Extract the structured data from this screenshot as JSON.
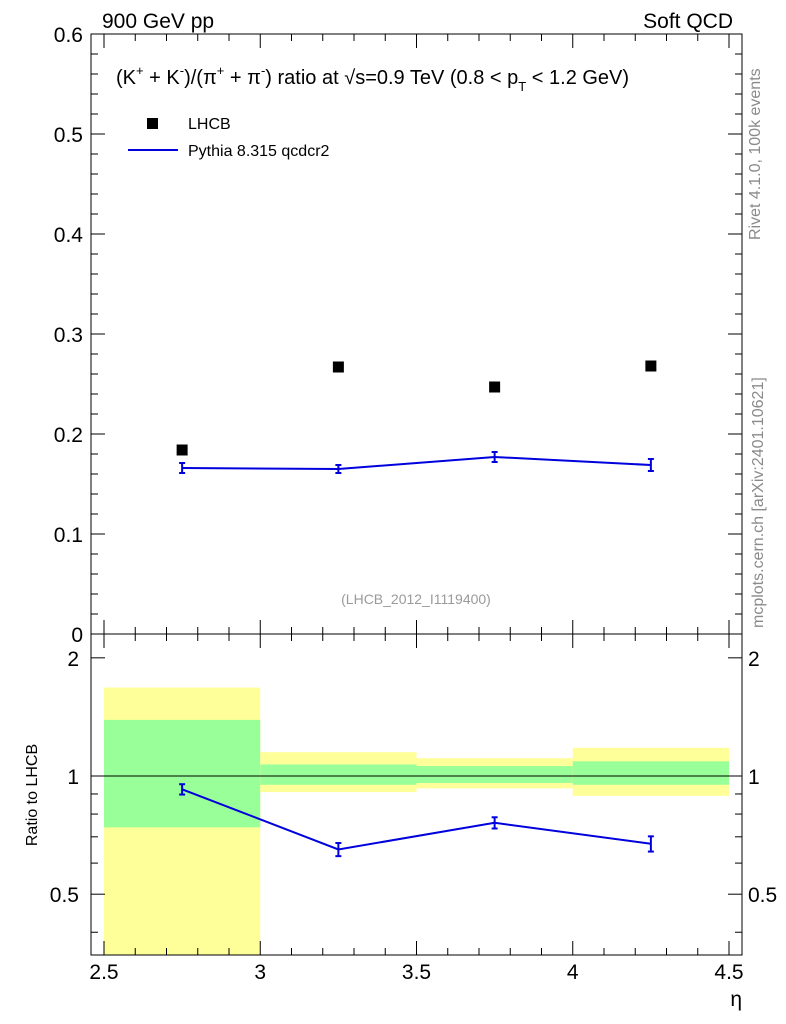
{
  "header": {
    "left": "900 GeV pp",
    "right": "Soft QCD"
  },
  "side_labels": {
    "rivet": "Rivet 4.1.0,  100k events",
    "site": "mcplots.cern.ch [arXiv:2401.10621]"
  },
  "reference_id": "(LHCB_2012_I1119400)",
  "colors": {
    "mc": "#0000dd",
    "band_inner": "#99ff99",
    "band_outer": "#ffff99",
    "data": "#000000"
  },
  "chart_data": [
    {
      "type": "scatter",
      "panel": "main",
      "title": {
        "pre": "(K",
        "sup1": "+",
        "mid1": " + K",
        "sup2": "-",
        "mid2": ")/(π",
        "sup3": "+",
        "mid3": " + π",
        "sup4": "-",
        "mid4": ") ratio at √s=0.9 TeV (0.8 < p",
        "sub": "T",
        "post": " < 1.2 GeV)"
      },
      "xlim": [
        2.5,
        4.5
      ],
      "ylim": [
        0,
        0.6
      ],
      "y_ticks": [
        "0",
        "0.1",
        "0.2",
        "0.3",
        "0.4",
        "0.5",
        "0.6"
      ],
      "legend": [
        {
          "name": "LHCB",
          "marker": "square"
        },
        {
          "name": "Pythia 8.315 qcdcr2",
          "marker": "line"
        }
      ],
      "series": [
        {
          "name": "LHCB",
          "x": [
            2.75,
            3.25,
            3.75,
            4.25
          ],
          "y": [
            0.184,
            0.267,
            0.247,
            0.268
          ]
        },
        {
          "name": "Pythia 8.315 qcdcr2",
          "x": [
            2.75,
            3.25,
            3.75,
            4.25
          ],
          "y": [
            0.166,
            0.165,
            0.177,
            0.169
          ],
          "err": [
            0.005,
            0.004,
            0.005,
            0.006
          ]
        }
      ]
    },
    {
      "type": "line",
      "panel": "ratio",
      "ylabel": "Ratio to LHCB",
      "xlabel": "η",
      "xlim": [
        2.5,
        4.5
      ],
      "ylim": [
        0.35,
        2.3
      ],
      "y_ticks": [
        "0.5",
        "1",
        "2"
      ],
      "x_ticks": [
        "2.5",
        "3",
        "3.5",
        "4",
        "4.5"
      ],
      "bins": [
        [
          2.5,
          3.0
        ],
        [
          3.0,
          3.5
        ],
        [
          3.5,
          4.0
        ],
        [
          4.0,
          4.5
        ]
      ],
      "band_outer": [
        [
          0.35,
          1.68
        ],
        [
          0.91,
          1.15
        ],
        [
          0.93,
          1.11
        ],
        [
          0.89,
          1.18
        ]
      ],
      "band_inner": [
        [
          0.74,
          1.39
        ],
        [
          0.95,
          1.07
        ],
        [
          0.96,
          1.06
        ],
        [
          0.95,
          1.09
        ]
      ],
      "series": [
        {
          "name": "Pythia 8.315 qcdcr2",
          "x": [
            2.75,
            3.25,
            3.75,
            4.25
          ],
          "y": [
            0.925,
            0.65,
            0.76,
            0.672
          ],
          "err": [
            0.028,
            0.025,
            0.025,
            0.03
          ]
        }
      ]
    }
  ]
}
